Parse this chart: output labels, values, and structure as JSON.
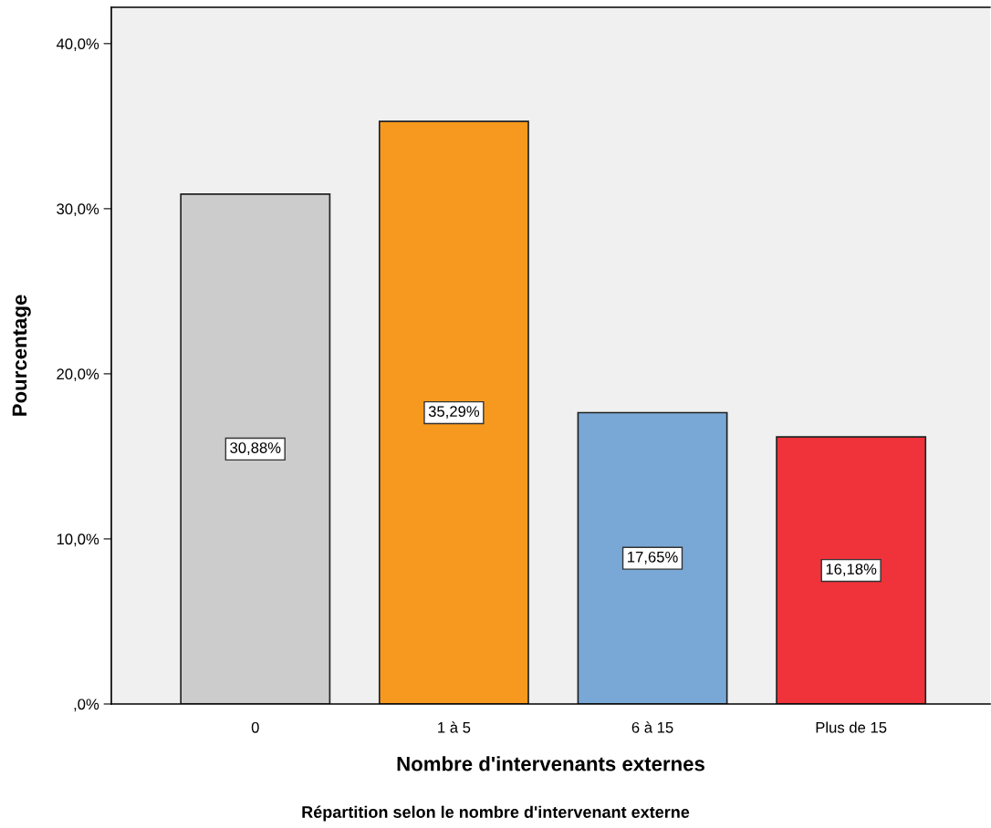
{
  "chart_data": {
    "type": "bar",
    "title": "Répartition selon le nombre d'intervenant externe",
    "xlabel": "Nombre d'intervenants externes",
    "ylabel": "Pourcentage",
    "categories": [
      "0",
      "1 à 5",
      "6 à 15",
      "Plus de 15"
    ],
    "values": [
      30.88,
      35.29,
      17.65,
      16.18
    ],
    "colors": [
      "#cccccc",
      "#f7991e",
      "#79a8d6",
      "#f0323a"
    ],
    "value_labels": [
      "30,88%",
      "35,29%",
      "17,65%",
      "16,18%"
    ],
    "ylim": [
      0,
      42.2
    ],
    "yticks": [
      {
        "value": 0,
        "label": ",0%"
      },
      {
        "value": 10,
        "label": "10,0%"
      },
      {
        "value": 20,
        "label": "20,0%"
      },
      {
        "value": 30,
        "label": "30,0%"
      },
      {
        "value": 40,
        "label": "40,0%"
      }
    ],
    "grid": false,
    "legend": false
  }
}
